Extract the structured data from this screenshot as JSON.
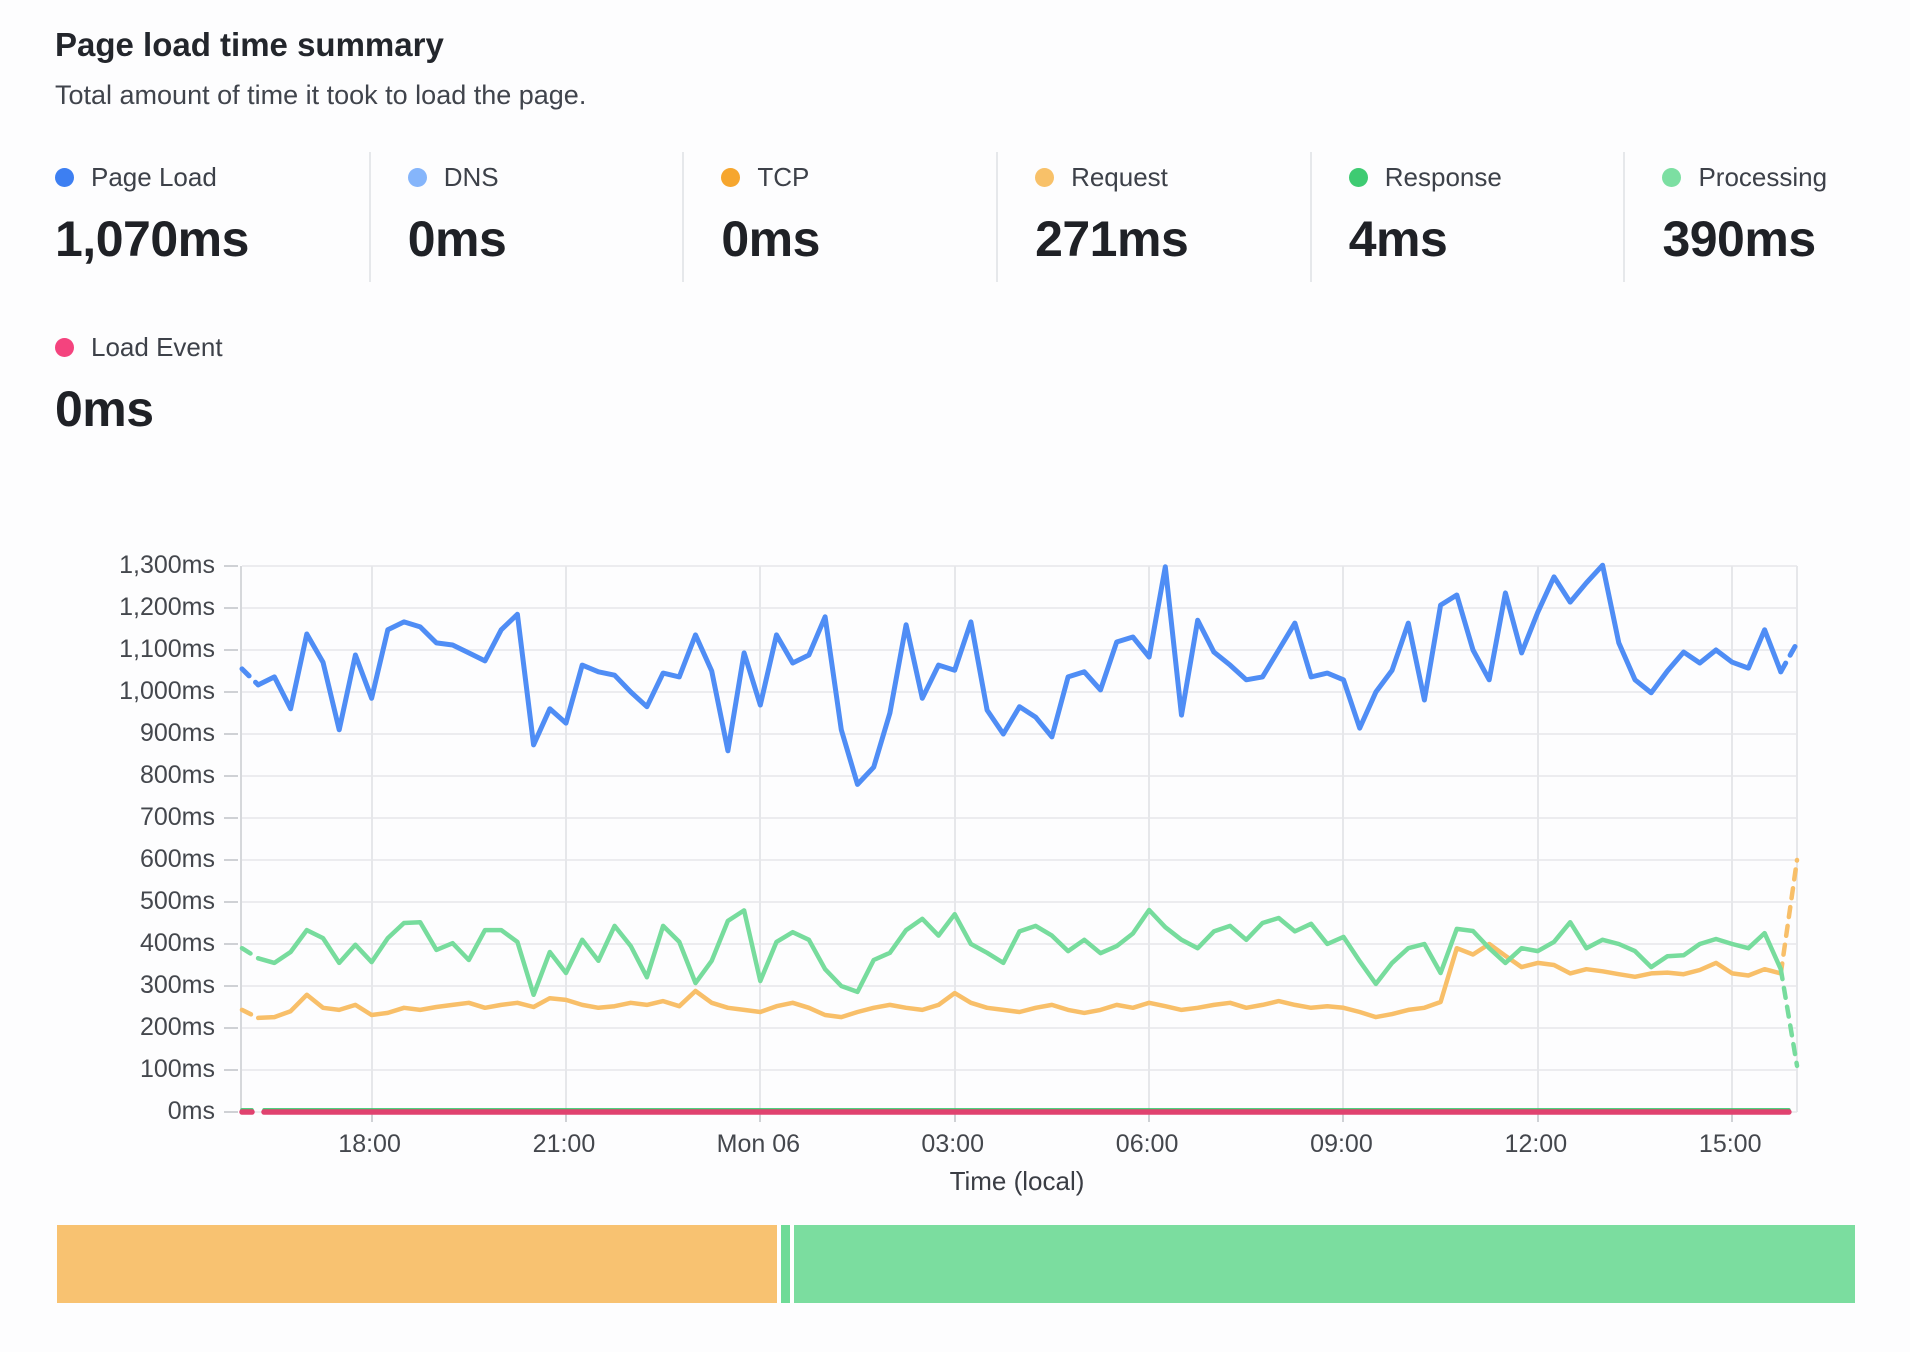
{
  "header": {
    "title": "Page load time summary",
    "subtitle": "Total amount of time it took to load the page."
  },
  "summary": {
    "cards": [
      {
        "label": "Page Load",
        "value": "1,070ms",
        "color": "#3d7ff2"
      },
      {
        "label": "DNS",
        "value": "0ms",
        "color": "#85b5fb"
      },
      {
        "label": "TCP",
        "value": "0ms",
        "color": "#f6a62e"
      },
      {
        "label": "Request",
        "value": "271ms",
        "color": "#f8c169"
      },
      {
        "label": "Response",
        "value": "4ms",
        "color": "#3ecb72"
      },
      {
        "label": "Processing",
        "value": "390ms",
        "color": "#7cdfa2"
      }
    ],
    "load_event": {
      "label": "Load Event",
      "value": "0ms",
      "color": "#f4437e"
    }
  },
  "chart_data": {
    "type": "line",
    "xlabel": "Time (local)",
    "ylim": [
      0,
      1300
    ],
    "grid": true,
    "x_point_count": 97,
    "x_interval_minutes": 15,
    "y_ticks": [
      {
        "v": 0,
        "label": "0ms"
      },
      {
        "v": 100,
        "label": "100ms"
      },
      {
        "v": 200,
        "label": "200ms"
      },
      {
        "v": 300,
        "label": "300ms"
      },
      {
        "v": 400,
        "label": "400ms"
      },
      {
        "v": 500,
        "label": "500ms"
      },
      {
        "v": 600,
        "label": "600ms"
      },
      {
        "v": 700,
        "label": "700ms"
      },
      {
        "v": 800,
        "label": "800ms"
      },
      {
        "v": 900,
        "label": "900ms"
      },
      {
        "v": 1000,
        "label": "1,000ms"
      },
      {
        "v": 1100,
        "label": "1,100ms"
      },
      {
        "v": 1200,
        "label": "1,200ms"
      },
      {
        "v": 1300,
        "label": "1,300ms"
      }
    ],
    "x_ticks": [
      {
        "index": 8,
        "label": "18:00"
      },
      {
        "index": 20,
        "label": "21:00"
      },
      {
        "index": 32,
        "label": "Mon 06"
      },
      {
        "index": 44,
        "label": "03:00"
      },
      {
        "index": 56,
        "label": "06:00"
      },
      {
        "index": 68,
        "label": "09:00"
      },
      {
        "index": 80,
        "label": "12:00"
      },
      {
        "index": 92,
        "label": "15:00"
      }
    ],
    "series": [
      {
        "name": "Response",
        "color": "#36c96d",
        "width": 3.5,
        "constant": 5,
        "end_index": 95.5,
        "dashed_start": true
      },
      {
        "name": "Load Event",
        "color": "#e0426f",
        "width": 5.5,
        "constant": 0,
        "end_index": 95.5,
        "dashed_start": true
      },
      {
        "name": "Request",
        "color": "#f8bf69",
        "width": 4.5,
        "dashed_start": true,
        "dashed_end": true,
        "values": [
          243,
          224,
          226,
          240,
          279,
          248,
          243,
          255,
          231,
          236,
          248,
          243,
          250,
          255,
          260,
          248,
          255,
          260,
          250,
          271,
          267,
          255,
          248,
          252,
          260,
          255,
          264,
          252,
          288,
          260,
          248,
          243,
          238,
          252,
          260,
          248,
          231,
          226,
          238,
          248,
          255,
          248,
          243,
          255,
          283,
          260,
          248,
          243,
          238,
          248,
          255,
          243,
          236,
          243,
          255,
          248,
          260,
          252,
          243,
          248,
          255,
          260,
          248,
          255,
          264,
          255,
          248,
          252,
          248,
          238,
          226,
          233,
          243,
          248,
          262,
          390,
          375,
          400,
          372,
          345,
          355,
          350,
          330,
          340,
          335,
          328,
          322,
          330,
          332,
          328,
          338,
          355,
          330,
          325,
          340,
          330,
          600
        ]
      },
      {
        "name": "Processing",
        "color": "#77dc9d",
        "width": 4.5,
        "dashed_start": true,
        "dashed_end": true,
        "values": [
          390,
          366,
          355,
          381,
          433,
          414,
          355,
          398,
          357,
          414,
          450,
          452,
          386,
          402,
          362,
          433,
          433,
          405,
          279,
          381,
          331,
          410,
          360,
          443,
          395,
          321,
          443,
          405,
          307,
          360,
          455,
          480,
          312,
          405,
          428,
          410,
          340,
          300,
          286,
          362,
          379,
          433,
          460,
          420,
          471,
          400,
          379,
          355,
          430,
          443,
          420,
          383,
          410,
          378,
          395,
          425,
          481,
          440,
          410,
          390,
          430,
          443,
          410,
          450,
          462,
          430,
          448,
          400,
          417,
          359,
          305,
          355,
          390,
          400,
          331,
          436,
          431,
          390,
          355,
          390,
          383,
          405,
          452,
          390,
          410,
          400,
          383,
          345,
          371,
          373,
          400,
          412,
          400,
          390,
          426,
          340,
          110
        ]
      },
      {
        "name": "Page Load",
        "color": "#4f8df5",
        "width": 5,
        "dashed_start": true,
        "dashed_end": true,
        "values": [
          1055,
          1017,
          1036,
          960,
          1138,
          1071,
          910,
          1088,
          985,
          1148,
          1167,
          1155,
          1117,
          1112,
          1093,
          1074,
          1148,
          1185,
          874,
          960,
          926,
          1064,
          1048,
          1040,
          1000,
          965,
          1045,
          1036,
          1136,
          1050,
          860,
          1093,
          969,
          1136,
          1069,
          1088,
          1179,
          910,
          780,
          821,
          950,
          1160,
          985,
          1064,
          1052,
          1167,
          957,
          900,
          965,
          940,
          893,
          1036,
          1048,
          1005,
          1119,
          1131,
          1083,
          1298,
          945,
          1171,
          1095,
          1064,
          1029,
          1036,
          1100,
          1164,
          1036,
          1045,
          1029,
          914,
          1000,
          1052,
          1164,
          981,
          1207,
          1231,
          1100,
          1029,
          1236,
          1093,
          1190,
          1274,
          1214,
          1260,
          1302,
          1117,
          1029,
          998,
          1050,
          1095,
          1069,
          1100,
          1071,
          1057,
          1148,
          1048,
          1117
        ]
      }
    ]
  },
  "timeline_bar": {
    "segments": [
      {
        "name": "tcp-phase",
        "color": "#f8c271",
        "grow": 40.2
      },
      {
        "name": "response-sliver",
        "color": "#6edb97",
        "grow": 0.5
      },
      {
        "name": "processing-phase",
        "color": "#7bdd9f",
        "grow": 59.3
      }
    ]
  }
}
